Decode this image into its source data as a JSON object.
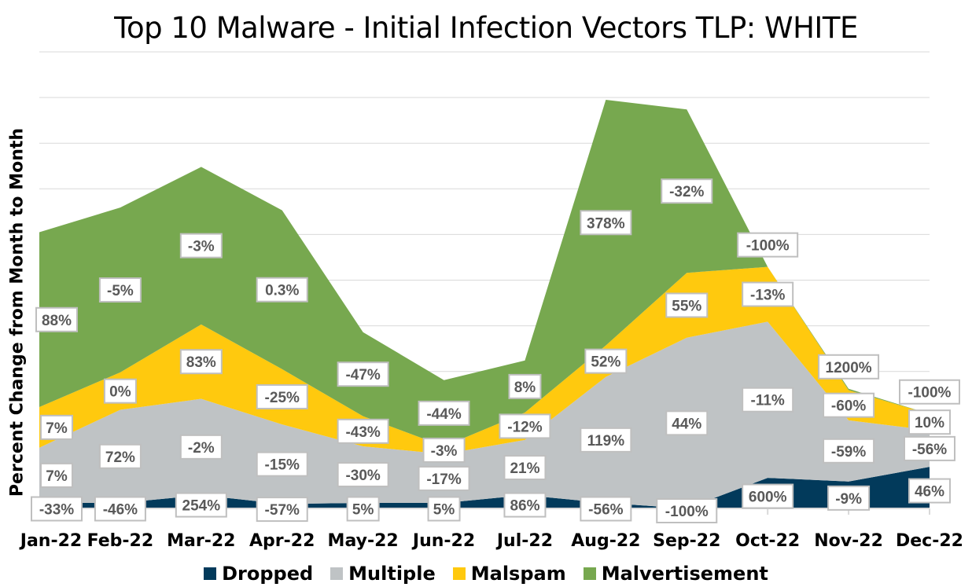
{
  "chart_data": {
    "type": "area",
    "stacked": true,
    "title": "Top 10 Malware - Initial Infection Vectors TLP: WHITE",
    "xlabel": "",
    "ylabel": "Percent Change from Month to Month",
    "categories": [
      "Jan-22",
      "Feb-22",
      "Mar-22",
      "Apr-22",
      "May-22",
      "Jun-22",
      "Jul-22",
      "Aug-22",
      "Sep-22",
      "Oct-22",
      "Nov-22",
      "Dec-22"
    ],
    "ylim": [
      0,
      10
    ],
    "grid": true,
    "legend_position": "bottom",
    "series": [
      {
        "name": "Dropped",
        "color": "#023a5b",
        "values": [
          0.12,
          0.12,
          0.29,
          0.1,
          0.12,
          0.12,
          0.29,
          0.12,
          0,
          0.67,
          0.59,
          0.91
        ],
        "labels": [
          "-33%",
          "-46%",
          "254%",
          "-57%",
          "5%",
          "5%",
          "86%",
          "-56%",
          "-100%",
          "600%",
          "-9%",
          "46%"
        ]
      },
      {
        "name": "Multiple",
        "color": "#bfc3c5",
        "values": [
          1.21,
          2.04,
          2.11,
          1.74,
          1.24,
          1.07,
          1.21,
          2.76,
          3.74,
          3.42,
          1.34,
          0.8
        ],
        "labels": [
          "7%",
          "72%",
          "-2%",
          "-15%",
          "-30%",
          "-17%",
          "21%",
          "119%",
          "44%",
          "-11%",
          "-59%",
          "-56%"
        ]
      },
      {
        "name": "Malspam",
        "color": "#ffc90e",
        "values": [
          0.89,
          0.82,
          1.63,
          1.21,
          0.66,
          0.17,
          0.6,
          0.69,
          1.42,
          1.2,
          0.66,
          0.36
        ],
        "labels": [
          "7%",
          "0%",
          "83%",
          "-25%",
          "-43%",
          "-3%",
          "-12%",
          "52%",
          "55%",
          "-13%",
          "-60%",
          "10%"
        ]
      },
      {
        "name": "Malvertisement",
        "color": "#77a84f",
        "values": [
          3.83,
          3.61,
          3.45,
          3.48,
          1.84,
          1.45,
          1.14,
          5.38,
          3.58,
          0,
          0.03,
          0
        ],
        "labels": [
          "88%",
          "-5%",
          "-3%",
          "0.3%",
          "-47%",
          "-44%",
          "8%",
          "378%",
          "-32%",
          "-100%",
          "1200%",
          "-100%"
        ]
      }
    ]
  }
}
